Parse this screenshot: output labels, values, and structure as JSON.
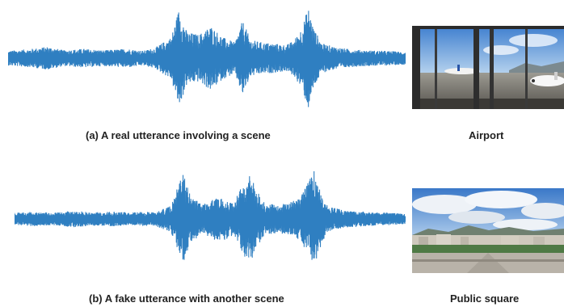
{
  "panels": [
    {
      "caption": "(a) A real utterance involving a scene",
      "scene_label": "Airport",
      "waveform_color": "#2f7fc1",
      "envelope": [
        [
          0.0,
          0.14
        ],
        [
          0.05,
          0.17
        ],
        [
          0.1,
          0.22
        ],
        [
          0.14,
          0.15
        ],
        [
          0.19,
          0.18
        ],
        [
          0.24,
          0.15
        ],
        [
          0.3,
          0.18
        ],
        [
          0.34,
          0.14
        ],
        [
          0.37,
          0.2
        ],
        [
          0.41,
          0.4
        ],
        [
          0.43,
          0.95
        ],
        [
          0.45,
          0.5
        ],
        [
          0.48,
          0.45
        ],
        [
          0.51,
          0.62
        ],
        [
          0.54,
          0.4
        ],
        [
          0.57,
          0.3
        ],
        [
          0.59,
          0.72
        ],
        [
          0.61,
          0.35
        ],
        [
          0.64,
          0.3
        ],
        [
          0.67,
          0.28
        ],
        [
          0.7,
          0.25
        ],
        [
          0.72,
          0.35
        ],
        [
          0.74,
          0.6
        ],
        [
          0.755,
          0.98
        ],
        [
          0.77,
          0.55
        ],
        [
          0.79,
          0.28
        ],
        [
          0.82,
          0.22
        ],
        [
          0.86,
          0.17
        ],
        [
          0.9,
          0.15
        ],
        [
          0.95,
          0.14
        ],
        [
          1.0,
          0.12
        ]
      ]
    },
    {
      "caption": "(b) A fake utterance  with another scene",
      "scene_label": "Public square",
      "waveform_color": "#2f7fc1",
      "envelope": [
        [
          0.0,
          0.12
        ],
        [
          0.05,
          0.14
        ],
        [
          0.1,
          0.12
        ],
        [
          0.15,
          0.16
        ],
        [
          0.2,
          0.13
        ],
        [
          0.25,
          0.14
        ],
        [
          0.3,
          0.13
        ],
        [
          0.36,
          0.14
        ],
        [
          0.4,
          0.25
        ],
        [
          0.43,
          0.9
        ],
        [
          0.45,
          0.45
        ],
        [
          0.48,
          0.3
        ],
        [
          0.51,
          0.4
        ],
        [
          0.54,
          0.42
        ],
        [
          0.56,
          0.3
        ],
        [
          0.58,
          0.62
        ],
        [
          0.6,
          0.88
        ],
        [
          0.62,
          0.55
        ],
        [
          0.64,
          0.3
        ],
        [
          0.67,
          0.28
        ],
        [
          0.7,
          0.3
        ],
        [
          0.73,
          0.42
        ],
        [
          0.75,
          0.7
        ],
        [
          0.765,
          0.95
        ],
        [
          0.78,
          0.6
        ],
        [
          0.8,
          0.25
        ],
        [
          0.84,
          0.17
        ],
        [
          0.88,
          0.15
        ],
        [
          0.92,
          0.13
        ],
        [
          0.96,
          0.12
        ],
        [
          1.0,
          0.1
        ]
      ]
    }
  ],
  "scene_icons": [
    "airport-photo",
    "public-square-photo"
  ]
}
